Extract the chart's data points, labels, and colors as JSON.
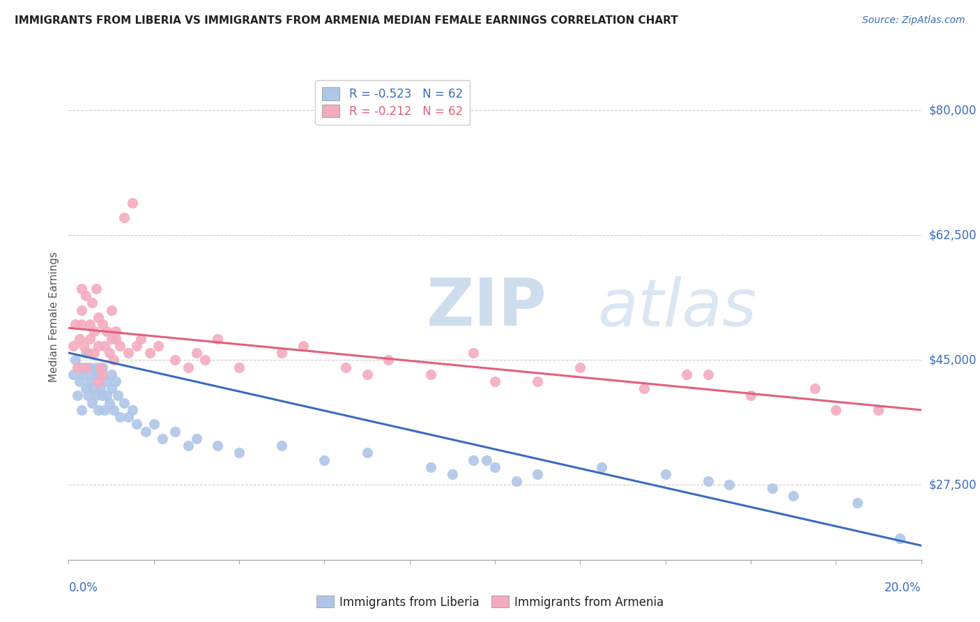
{
  "title": "IMMIGRANTS FROM LIBERIA VS IMMIGRANTS FROM ARMENIA MEDIAN FEMALE EARNINGS CORRELATION CHART",
  "source": "Source: ZipAtlas.com",
  "ylabel": "Median Female Earnings",
  "yticks": [
    27500,
    45000,
    62500,
    80000
  ],
  "ytick_labels": [
    "$27,500",
    "$45,000",
    "$62,500",
    "$80,000"
  ],
  "xmin": 0.0,
  "xmax": 20.0,
  "ymin": 17000,
  "ymax": 85000,
  "liberia_color": "#aec6e8",
  "armenia_color": "#f4abbe",
  "liberia_line_color": "#3a6bbf",
  "armenia_line_color": "#e0607a",
  "legend_R_liberia": "-0.523",
  "legend_N_liberia": "62",
  "legend_R_armenia": "-0.212",
  "legend_N_armenia": "62",
  "legend_label_liberia": "Immigrants from Liberia",
  "legend_label_armenia": "Immigrants from Armenia",
  "watermark_ZIP": "ZIP",
  "watermark_atlas": "atlas",
  "liberia_x": [
    0.1,
    0.15,
    0.2,
    0.25,
    0.3,
    0.3,
    0.35,
    0.4,
    0.4,
    0.45,
    0.5,
    0.5,
    0.55,
    0.6,
    0.6,
    0.65,
    0.65,
    0.7,
    0.7,
    0.75,
    0.8,
    0.8,
    0.85,
    0.9,
    0.9,
    0.95,
    1.0,
    1.0,
    1.05,
    1.1,
    1.15,
    1.2,
    1.3,
    1.4,
    1.5,
    1.6,
    1.8,
    2.0,
    2.2,
    2.5,
    2.8,
    3.0,
    3.5,
    4.0,
    5.0,
    6.0,
    7.0,
    8.5,
    9.5,
    10.0,
    11.0,
    12.5,
    14.0,
    15.0,
    16.5,
    17.0,
    18.5,
    9.0,
    10.5,
    19.5,
    9.8,
    15.5
  ],
  "liberia_y": [
    43000,
    45000,
    40000,
    42000,
    44000,
    38000,
    43000,
    41000,
    46000,
    40000,
    42000,
    44000,
    39000,
    43000,
    41000,
    40000,
    44000,
    38000,
    43000,
    41000,
    40000,
    44000,
    38000,
    42000,
    40000,
    39000,
    41000,
    43000,
    38000,
    42000,
    40000,
    37000,
    39000,
    37000,
    38000,
    36000,
    35000,
    36000,
    34000,
    35000,
    33000,
    34000,
    33000,
    32000,
    33000,
    31000,
    32000,
    30000,
    31000,
    30000,
    29000,
    30000,
    29000,
    28000,
    27000,
    26000,
    25000,
    29000,
    28000,
    20000,
    31000,
    27500
  ],
  "armenia_x": [
    0.1,
    0.15,
    0.2,
    0.25,
    0.3,
    0.3,
    0.35,
    0.4,
    0.45,
    0.5,
    0.5,
    0.55,
    0.6,
    0.6,
    0.65,
    0.7,
    0.7,
    0.75,
    0.8,
    0.85,
    0.9,
    0.95,
    1.0,
    1.0,
    1.05,
    1.1,
    1.2,
    1.3,
    1.4,
    1.5,
    1.7,
    1.9,
    2.1,
    2.5,
    3.0,
    3.5,
    4.0,
    5.0,
    5.5,
    6.5,
    7.5,
    8.5,
    9.5,
    11.0,
    12.0,
    13.5,
    15.0,
    16.0,
    17.5,
    19.0,
    0.8,
    1.6,
    3.2,
    0.4,
    0.7,
    2.8,
    7.0,
    10.0,
    14.5,
    18.0,
    0.3,
    1.1
  ],
  "armenia_y": [
    47000,
    50000,
    44000,
    48000,
    52000,
    55000,
    47000,
    54000,
    46000,
    50000,
    48000,
    53000,
    46000,
    49000,
    55000,
    47000,
    51000,
    44000,
    50000,
    47000,
    49000,
    46000,
    48000,
    52000,
    45000,
    49000,
    47000,
    65000,
    46000,
    67000,
    48000,
    46000,
    47000,
    45000,
    46000,
    48000,
    44000,
    46000,
    47000,
    44000,
    45000,
    43000,
    46000,
    42000,
    44000,
    41000,
    43000,
    40000,
    41000,
    38000,
    43000,
    47000,
    45000,
    44000,
    42000,
    44000,
    43000,
    42000,
    43000,
    38000,
    50000,
    48000
  ]
}
